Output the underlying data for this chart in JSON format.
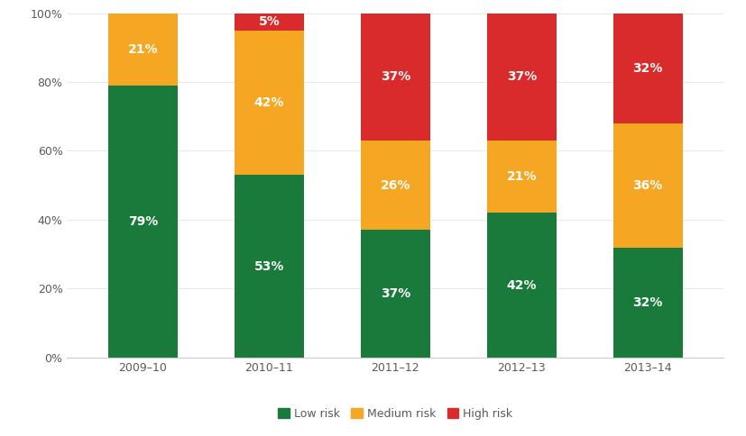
{
  "categories": [
    "2009–10",
    "2010–11",
    "2011–12",
    "2012–13",
    "2013–14"
  ],
  "low_risk": [
    79,
    53,
    37,
    42,
    32
  ],
  "medium_risk": [
    21,
    42,
    26,
    21,
    36
  ],
  "high_risk": [
    0,
    5,
    37,
    37,
    32
  ],
  "color_low": "#1a7a3c",
  "color_medium": "#f5a623",
  "color_high": "#d92b2b",
  "legend_labels": [
    "Low risk",
    "Medium risk",
    "High risk"
  ],
  "ylim": [
    0,
    100
  ],
  "yticks": [
    0,
    20,
    40,
    60,
    80,
    100
  ],
  "yticklabels": [
    "0%",
    "20%",
    "40%",
    "60%",
    "80%",
    "100%"
  ],
  "bar_width": 0.55,
  "label_fontsize": 10,
  "tick_fontsize": 9,
  "legend_fontsize": 9,
  "background_color": "#ffffff",
  "label_color_white": "#ffffff",
  "axis_label_color": "#5a5a5a"
}
